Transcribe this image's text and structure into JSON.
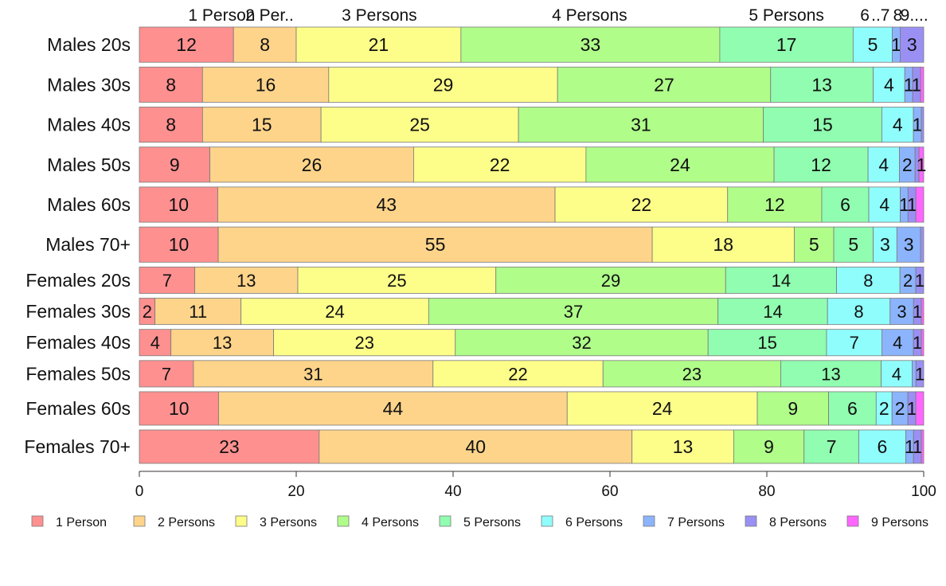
{
  "chart_data": {
    "type": "bar",
    "orientation": "horizontal",
    "stacked": true,
    "categories": [
      "Males 20s",
      "Males 30s",
      "Males 40s",
      "Males 50s",
      "Males 60s",
      "Males 70+",
      "Females 20s",
      "Females 30s",
      "Females 40s",
      "Females 50s",
      "Females 60s",
      "Females 70+"
    ],
    "bar_height_units": [
      1,
      1,
      1,
      1,
      1,
      1,
      0.75,
      0.75,
      0.75,
      0.75,
      0.95,
      0.95
    ],
    "series": [
      {
        "name": "1 Person",
        "color": "#ff9090",
        "values": [
          12,
          8,
          8,
          9,
          10,
          10,
          7,
          2,
          4,
          7,
          10,
          23
        ],
        "labels": [
          "12",
          "8",
          "8",
          "9",
          "10",
          "10",
          "7",
          "2",
          "4",
          "7",
          "10",
          "23"
        ]
      },
      {
        "name": "2 Persons",
        "color": "#fdd48a",
        "values": [
          8,
          16,
          15,
          26,
          43,
          55,
          13,
          11,
          13,
          31,
          44,
          40
        ],
        "labels": [
          "8",
          "16",
          "15",
          "26",
          "43",
          "55",
          "13",
          "11",
          "13",
          "31",
          "44",
          "40"
        ]
      },
      {
        "name": "3 Persons",
        "color": "#fdfd8a",
        "values": [
          21,
          29,
          25,
          22,
          22,
          18,
          25,
          24,
          23,
          22,
          24,
          13
        ],
        "labels": [
          "21",
          "29",
          "25",
          "22",
          "22",
          "18",
          "25",
          "24",
          "23",
          "22",
          "24",
          "13"
        ]
      },
      {
        "name": "4 Persons",
        "color": "#b0fd8a",
        "values": [
          33,
          27,
          31,
          24,
          12,
          5,
          29,
          37,
          32,
          23,
          9,
          9
        ],
        "labels": [
          "33",
          "27",
          "31",
          "24",
          "12",
          "5",
          "29",
          "37",
          "32",
          "23",
          "9",
          "9"
        ]
      },
      {
        "name": "5 Persons",
        "color": "#90fdb0",
        "values": [
          17,
          13,
          15,
          12,
          6,
          5,
          14,
          14,
          15,
          13,
          6,
          7
        ],
        "labels": [
          "17",
          "13",
          "15",
          "12",
          "6",
          "5",
          "14",
          "14",
          "15",
          "13",
          "6",
          "7"
        ]
      },
      {
        "name": "6 Persons",
        "color": "#90fdfd",
        "values": [
          5,
          4,
          4,
          4,
          4,
          3,
          8,
          8,
          7,
          4,
          2,
          6
        ],
        "labels": [
          "5",
          "4",
          "4",
          "4",
          "4",
          "3",
          "8",
          "8",
          "7",
          "4",
          "2",
          "6"
        ]
      },
      {
        "name": "7 Persons",
        "color": "#8cb4fd",
        "values": [
          1,
          1,
          1,
          2,
          1,
          3,
          2,
          3,
          4,
          0.5,
          2,
          1
        ],
        "labels": [
          "1",
          "1",
          "1",
          "2",
          "1",
          "3",
          "2",
          "3",
          "4",
          "",
          "2",
          "1"
        ]
      },
      {
        "name": "8 Persons",
        "color": "#9a90f4",
        "values": [
          3,
          1,
          0.3,
          0.5,
          1,
          0.4,
          1,
          1,
          1,
          1,
          1,
          1
        ],
        "labels": [
          "3",
          "1",
          "",
          "",
          "1",
          "",
          "1",
          "1",
          "1",
          "1",
          "1",
          "1"
        ]
      },
      {
        "name": "9 Persons",
        "color": "#ff66ff",
        "values": [
          0,
          0.4,
          0,
          0.6,
          1,
          0,
          0,
          0.3,
          0.3,
          0,
          1,
          0.3
        ],
        "labels": [
          "",
          "",
          "",
          "1",
          "",
          "",
          "",
          "",
          "",
          "",
          "",
          ""
        ]
      }
    ],
    "top_labels": [
      {
        "text": "1 Person",
        "x": 10.5
      },
      {
        "text": "2 Per..",
        "x": 16.6
      },
      {
        "text": "3 Persons",
        "x": 30.6
      },
      {
        "text": "4 Persons",
        "x": 57.4
      },
      {
        "text": "5 Persons",
        "x": 82.5
      },
      {
        "text": "6",
        "x": 92.5
      },
      {
        "text": "..7",
        "x": 94.5
      },
      {
        "text": "8",
        "x": 96.7
      },
      {
        "text": "9....",
        "x": 98.8
      }
    ],
    "xlim": [
      0,
      100
    ],
    "xticks": [
      0,
      20,
      40,
      60,
      80,
      100
    ],
    "legend_position": "bottom",
    "grid": false
  }
}
